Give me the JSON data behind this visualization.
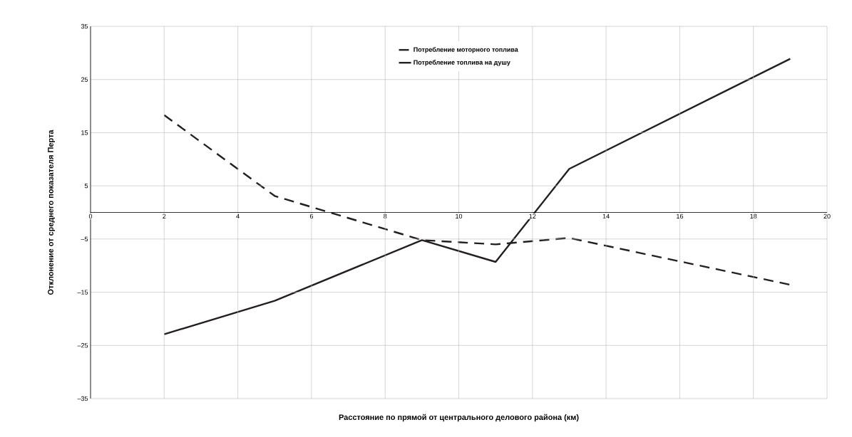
{
  "chart_data": {
    "type": "line",
    "xlabel": "Расстояние по прямой от центрального делового района (км)",
    "ylabel": "Отклонение от среднего показателя Перта",
    "x": [
      2,
      5,
      9,
      11,
      13,
      19
    ],
    "series": [
      {
        "name": "Потребление моторного топлива",
        "color": "#231f20",
        "line_style": "dashed",
        "values": [
          18.3,
          3.1,
          -5.2,
          -6,
          -4.8,
          -13.6
        ]
      },
      {
        "name": "Потребление топлива на душу",
        "color": "#231f20",
        "line_style": "solid",
        "values": [
          -22.9,
          -16.6,
          -5.2,
          -9.3,
          8.2,
          28.9
        ]
      }
    ],
    "xlim": [
      0,
      20
    ],
    "xticks": [
      0,
      2,
      4,
      6,
      8,
      10,
      12,
      14,
      16,
      18,
      20
    ],
    "ylim": [
      -35,
      35
    ],
    "yticks": [
      {
        "value": -35,
        "label": "–35"
      },
      {
        "value": -25,
        "label": "–25"
      },
      {
        "value": -15,
        "label": "–15"
      },
      {
        "value": -5,
        "label": "–5"
      },
      5,
      15,
      25,
      35
    ],
    "grid": true,
    "legend": "top",
    "marker": "none"
  }
}
